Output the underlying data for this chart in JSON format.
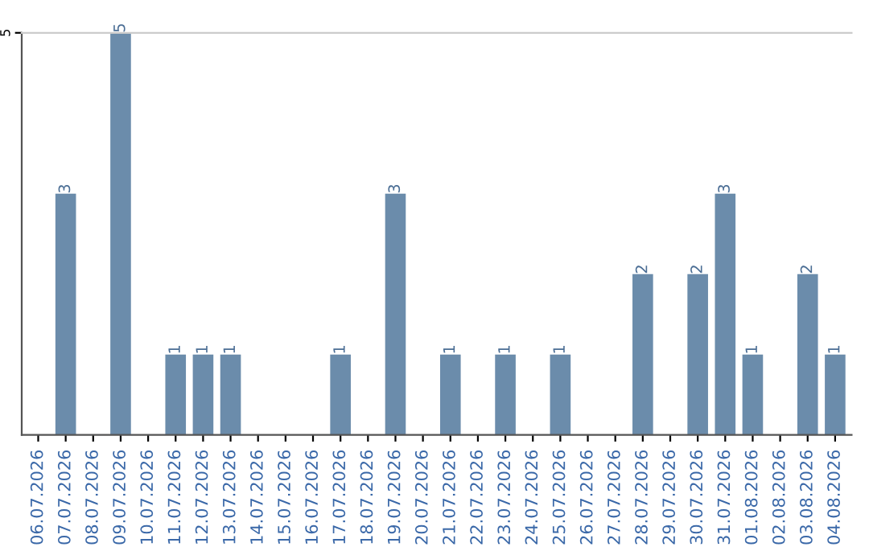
{
  "chart_data": {
    "type": "bar",
    "categories": [
      "06.07.2026",
      "07.07.2026",
      "08.07.2026",
      "09.07.2026",
      "10.07.2026",
      "11.07.2026",
      "12.07.2026",
      "13.07.2026",
      "14.07.2026",
      "15.07.2026",
      "16.07.2026",
      "17.07.2026",
      "18.07.2026",
      "19.07.2026",
      "20.07.2026",
      "21.07.2026",
      "22.07.2026",
      "23.07.2026",
      "24.07.2026",
      "25.07.2026",
      "26.07.2026",
      "27.07.2026",
      "28.07.2026",
      "29.07.2026",
      "30.07.2026",
      "31.07.2026",
      "01.08.2026",
      "02.08.2026",
      "03.08.2026",
      "04.08.2026"
    ],
    "values": [
      0,
      3,
      0,
      5,
      0,
      1,
      1,
      1,
      0,
      0,
      0,
      1,
      0,
      3,
      0,
      1,
      0,
      1,
      0,
      1,
      0,
      0,
      2,
      0,
      2,
      3,
      1,
      0,
      2,
      1
    ],
    "value_labels": [
      null,
      "3",
      null,
      "5",
      null,
      "1",
      "1",
      "1",
      null,
      null,
      null,
      "1",
      null,
      "3",
      null,
      "1",
      null,
      "1",
      null,
      "1",
      null,
      null,
      "2",
      null,
      "2",
      "3",
      "1",
      null,
      "2",
      "1"
    ],
    "color": "#6b8cab",
    "ylim": [
      0,
      5
    ],
    "yticks": [
      5
    ]
  }
}
